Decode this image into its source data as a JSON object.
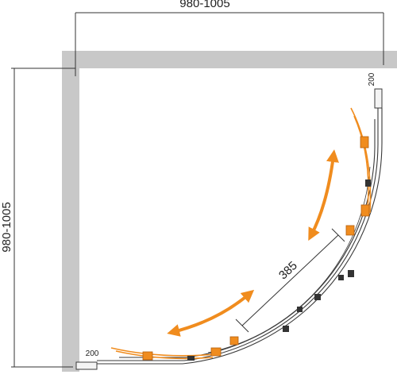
{
  "labels": {
    "top_width": "980-1005",
    "left_height": "980-1005",
    "door_opening": "385",
    "wall_offset_right": "200",
    "wall_offset_bottom": "200"
  },
  "colors": {
    "wall": "#c8c8c8",
    "arrow": "#f08c1e",
    "frame": "#3a3a3a",
    "dimension": "#333333"
  },
  "icons": {
    "open_arrow_right": "curved-double-arrow",
    "open_arrow_bottom": "curved-double-arrow",
    "roller": "door-roller"
  }
}
